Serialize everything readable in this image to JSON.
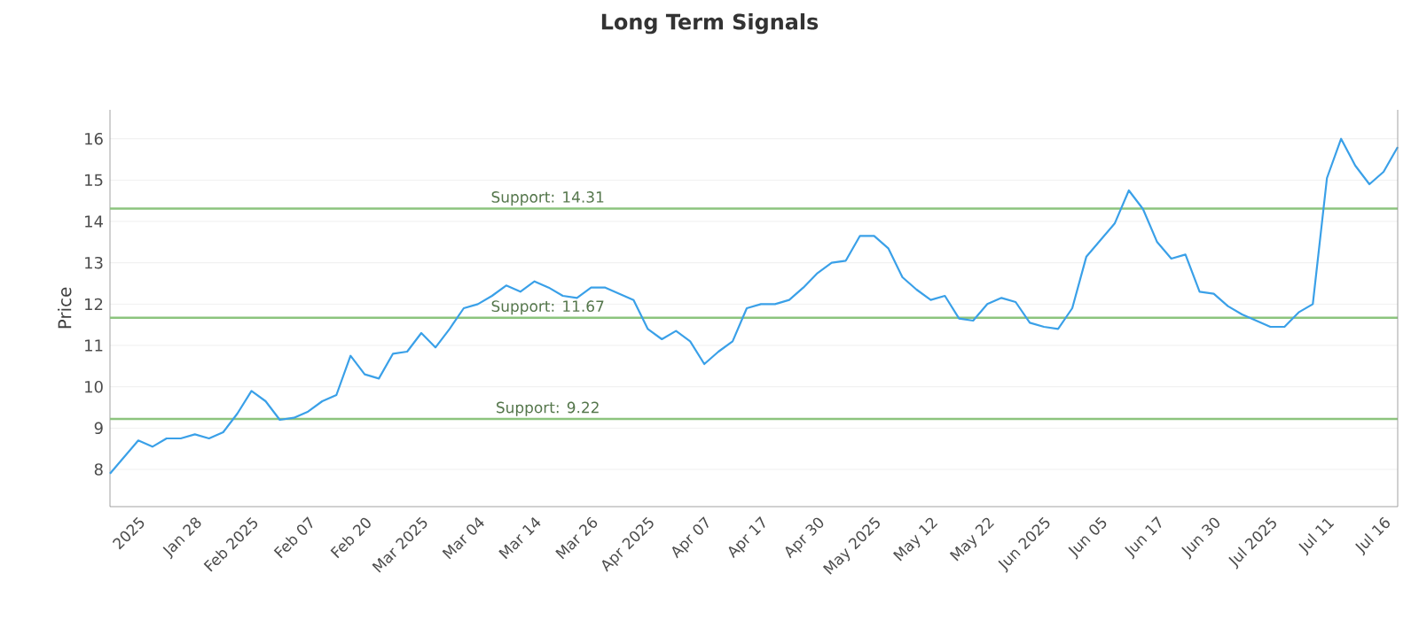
{
  "chart_data": {
    "type": "line",
    "title": "Long Term Signals",
    "ylabel": "Price",
    "categories": [
      null,
      null,
      "2025",
      null,
      null,
      null,
      "Jan 28",
      null,
      null,
      null,
      "Feb 2025",
      null,
      null,
      null,
      "Feb 07",
      null,
      null,
      null,
      "Feb 20",
      null,
      null,
      null,
      "Mar 2025",
      null,
      null,
      null,
      "Mar 04",
      null,
      null,
      null,
      "Mar 14",
      null,
      null,
      null,
      "Mar 26",
      null,
      null,
      null,
      "Apr 2025",
      null,
      null,
      null,
      "Apr 07",
      null,
      null,
      null,
      "Apr 17",
      null,
      null,
      null,
      "Apr 30",
      null,
      null,
      null,
      "May 2025",
      null,
      null,
      null,
      "May 12",
      null,
      null,
      null,
      "May 22",
      null,
      null,
      null,
      "Jun 2025",
      null,
      null,
      null,
      "Jun 05",
      null,
      null,
      null,
      "Jun 17",
      null,
      null,
      null,
      "Jun 30",
      null,
      null,
      null,
      "Jul 2025",
      null,
      null,
      null,
      "Jul 11",
      null,
      null,
      null,
      "Jul 16",
      null
    ],
    "series": [
      {
        "color": "#3aa0e8",
        "values": [
          7.9,
          8.3,
          8.7,
          8.55,
          8.75,
          8.75,
          8.85,
          8.75,
          8.9,
          9.35,
          9.9,
          9.65,
          9.2,
          9.25,
          9.4,
          9.65,
          9.8,
          10.75,
          10.3,
          10.2,
          10.8,
          10.85,
          11.3,
          10.95,
          11.4,
          11.9,
          12.0,
          12.2,
          12.45,
          12.3,
          12.55,
          12.4,
          12.2,
          12.15,
          12.4,
          12.4,
          12.25,
          12.1,
          11.4,
          11.15,
          11.35,
          11.1,
          10.55,
          10.85,
          11.1,
          11.9,
          12.0,
          12.0,
          12.1,
          12.4,
          12.75,
          13.0,
          13.05,
          13.65,
          13.65,
          13.35,
          12.65,
          12.35,
          12.1,
          12.2,
          11.65,
          11.6,
          12.0,
          12.15,
          12.05,
          11.55,
          11.45,
          11.4,
          11.9,
          13.15,
          13.55,
          13.95,
          14.75,
          14.3,
          13.5,
          13.1,
          13.2,
          12.3,
          12.25,
          11.95,
          11.75,
          11.6,
          11.45,
          11.45,
          11.8,
          12.0,
          15.05,
          16.0,
          15.35,
          14.9,
          15.2,
          15.8
        ]
      }
    ],
    "ylim": [
      7.1,
      16.7
    ],
    "yticks": [
      8,
      9,
      10,
      11,
      12,
      13,
      14,
      15,
      16
    ],
    "grid": "y",
    "ref_lines": [
      {
        "axis": "y",
        "value": 14.31,
        "label": "Support: 14.31",
        "color": "#8cc47e"
      },
      {
        "axis": "y",
        "value": 11.67,
        "label": "Support: 11.67",
        "color": "#8cc47e"
      },
      {
        "axis": "y",
        "value": 9.22,
        "label": "Support: 9.22",
        "color": "#8cc47e"
      }
    ]
  }
}
